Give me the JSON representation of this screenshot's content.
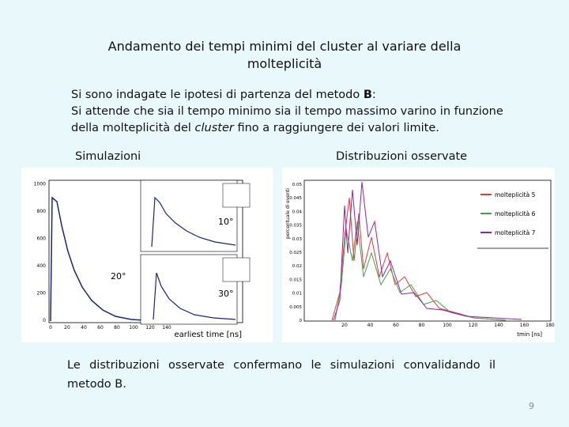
{
  "slide": {
    "title": [
      "Andamento dei tempi minimi del cluster al variare della",
      "molteplicità"
    ],
    "paragraph": [
      [
        "Si sono indagate le ipotesi di partenza del metodo ",
        "B",
        ":"
      ],
      [
        "Si attende che sia il tempo minimo sia il tempo massimo varino in funzione"
      ],
      [
        "della molteplicità del ",
        "cluster",
        " fino a raggiungere dei valori limite."
      ]
    ],
    "left_caption": "Simulazioni",
    "right_caption": "Distribuzioni osservate",
    "left_plot": {
      "yticks": [
        "0",
        "200",
        "400",
        "600",
        "800",
        "1000"
      ],
      "xticks": [
        "0",
        "20",
        "40",
        "60",
        "80",
        "100",
        "120",
        "140"
      ],
      "xlabel": "earliest time [ns]",
      "labels": [
        "10°",
        "20°",
        "30°"
      ]
    },
    "right_plot": {
      "ylabel": "percentuale di eventi",
      "yticks": [
        "0",
        "0.005",
        "0.01",
        "0.015",
        "0.02",
        "0.025",
        "0.03",
        "0.035",
        "0.04",
        "0.045",
        "0.05"
      ],
      "xticks": [
        "20",
        "40",
        "60",
        "80",
        "100",
        "120",
        "140",
        "160",
        "180"
      ],
      "xlabel": "tmin [ns]",
      "legend": [
        "molteplicità 5",
        "molteplicità 6",
        "molteplicità 7"
      ]
    },
    "conclusion": [
      "Le distribuzioni osservate confermano le simulazioni convalidando il",
      "metodo B."
    ],
    "page_number": "9"
  }
}
